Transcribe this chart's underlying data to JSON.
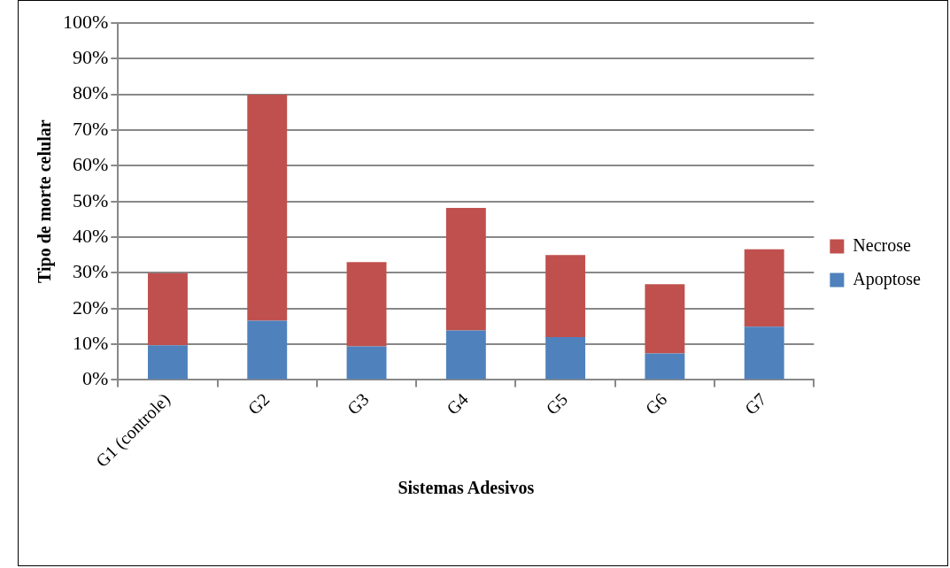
{
  "chart_data": {
    "type": "bar",
    "stacked": true,
    "xlabel": "Sistemas Adesivos",
    "ylabel": "Tipo de morte celular",
    "categories": [
      "G1 (controle)",
      "G2",
      "G3",
      "G4",
      "G5",
      "G6",
      "G7"
    ],
    "series": [
      {
        "name": "Apoptose",
        "color": "#4f81bd",
        "values": [
          9.7,
          16.6,
          9.4,
          13.9,
          12.0,
          7.4,
          14.9
        ]
      },
      {
        "name": "Necrose",
        "color": "#c0504d",
        "values": [
          20.2,
          63.3,
          23.6,
          34.3,
          23.0,
          19.4,
          21.7
        ]
      }
    ],
    "ylim": [
      0,
      100
    ],
    "yticks": [
      {
        "value": 0,
        "label": "0%"
      },
      {
        "value": 10,
        "label": "10%"
      },
      {
        "value": 20,
        "label": "20%"
      },
      {
        "value": 30,
        "label": "30%"
      },
      {
        "value": 40,
        "label": "40%"
      },
      {
        "value": 50,
        "label": "50%"
      },
      {
        "value": 60,
        "label": "60%"
      },
      {
        "value": 70,
        "label": "70%"
      },
      {
        "value": 80,
        "label": "80%"
      },
      {
        "value": 90,
        "label": "90%"
      },
      {
        "value": 100,
        "label": "100%"
      }
    ],
    "grid": "y",
    "legend": "right"
  }
}
